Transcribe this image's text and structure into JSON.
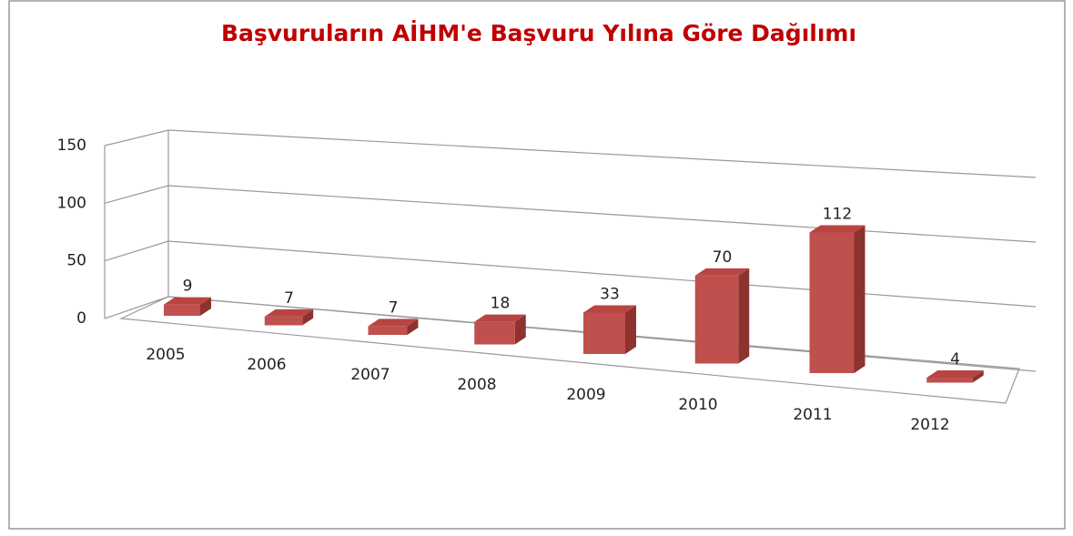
{
  "chart_data": {
    "type": "bar3d",
    "title": "Başvuruların AİHM'e  Başvuru Yılına Göre Dağılımı",
    "categories": [
      "2005",
      "2006",
      "2007",
      "2008",
      "2009",
      "2010",
      "2011",
      "2012"
    ],
    "values": [
      9,
      7,
      7,
      18,
      33,
      70,
      112,
      4
    ],
    "color": "#c0504d",
    "ylim": [
      0,
      150
    ],
    "yticks": [
      0,
      50,
      100,
      150
    ],
    "grid": true
  }
}
